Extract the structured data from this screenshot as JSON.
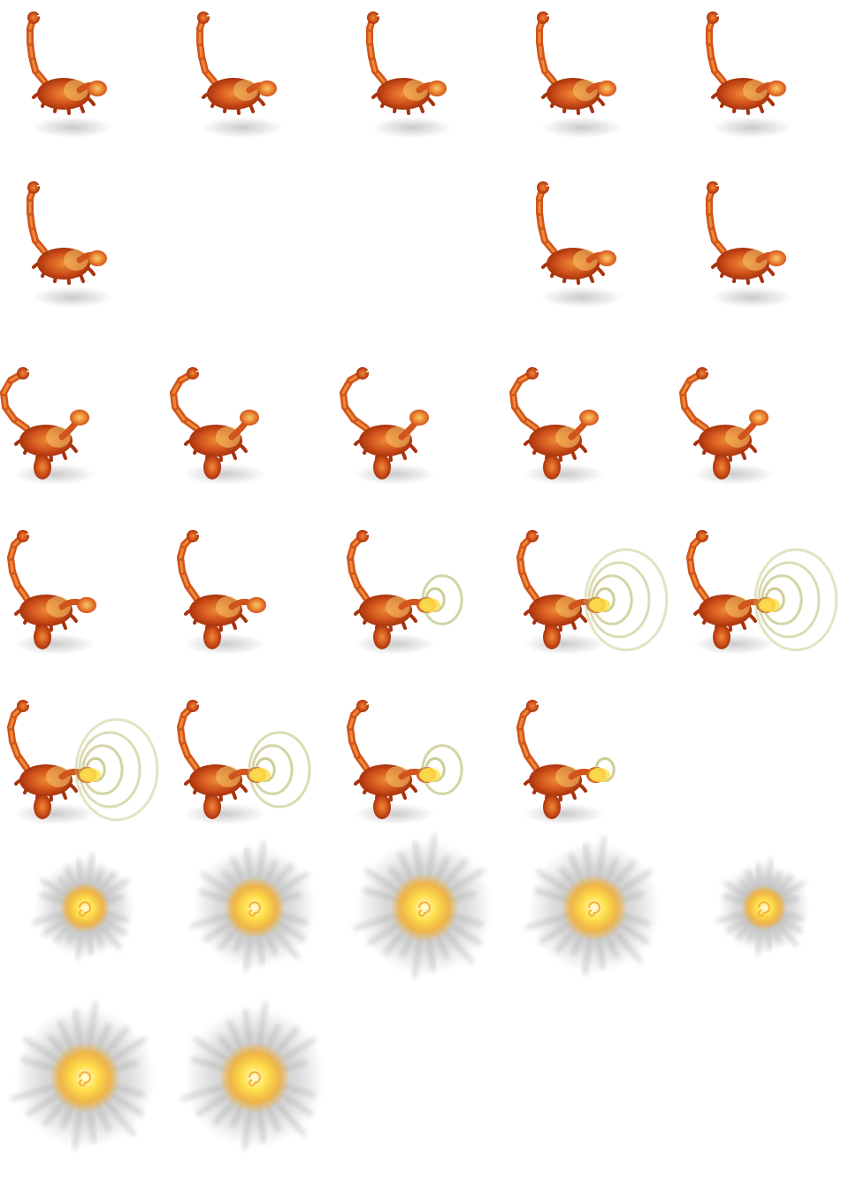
{
  "sheet": {
    "kind": "sprite-sheet",
    "subject": "scorpion",
    "columns": 5,
    "rows": 7,
    "background": "#ffffff",
    "colors": {
      "shell_dark": "#a8320c",
      "shell_mid": "#d1541c",
      "shell_light": "#ee8a36",
      "highlight": "#f7c86a",
      "shadow": "#bdbdbd",
      "ring": "#b8b86a",
      "blast_core": "#ffe04a",
      "blast_mid": "#f3b23a",
      "blast_smoke": "#9a9a9a"
    }
  },
  "frames": [
    {
      "icon": "scorpion-idle-sprite",
      "col": 0,
      "row": 0,
      "type": "scorpion",
      "pose": "idle",
      "rings": 0
    },
    {
      "icon": "scorpion-idle-sprite",
      "col": 1,
      "row": 0,
      "type": "scorpion",
      "pose": "idle",
      "rings": 0
    },
    {
      "icon": "scorpion-idle-sprite",
      "col": 2,
      "row": 0,
      "type": "scorpion",
      "pose": "idle",
      "rings": 0
    },
    {
      "icon": "scorpion-idle-sprite",
      "col": 3,
      "row": 0,
      "type": "scorpion",
      "pose": "idle",
      "rings": 0
    },
    {
      "icon": "scorpion-idle-sprite",
      "col": 4,
      "row": 0,
      "type": "scorpion",
      "pose": "idle",
      "rings": 0
    },
    {
      "icon": "scorpion-idle-sprite",
      "col": 0,
      "row": 1,
      "type": "scorpion",
      "pose": "idle",
      "rings": 0
    },
    {
      "icon": "scorpion-walk-sprite",
      "col": 3,
      "row": 1,
      "type": "scorpion",
      "pose": "walk",
      "rings": 0
    },
    {
      "icon": "scorpion-walk-sprite",
      "col": 4,
      "row": 1,
      "type": "scorpion",
      "pose": "walk",
      "rings": 0
    },
    {
      "icon": "scorpion-raise-sprite",
      "col": 0,
      "row": 2,
      "type": "scorpion",
      "pose": "raise",
      "rings": 0
    },
    {
      "icon": "scorpion-raise-sprite",
      "col": 1,
      "row": 2,
      "type": "scorpion",
      "pose": "raise",
      "rings": 0
    },
    {
      "icon": "scorpion-raise-sprite",
      "col": 2,
      "row": 2,
      "type": "scorpion",
      "pose": "raise",
      "rings": 0
    },
    {
      "icon": "scorpion-raise-sprite",
      "col": 3,
      "row": 2,
      "type": "scorpion",
      "pose": "raise",
      "rings": 0
    },
    {
      "icon": "scorpion-raise-sprite",
      "col": 4,
      "row": 2,
      "type": "scorpion",
      "pose": "raise",
      "rings": 0
    },
    {
      "icon": "scorpion-attack-sprite",
      "col": 0,
      "row": 3,
      "type": "scorpion",
      "pose": "attack",
      "rings": 0
    },
    {
      "icon": "scorpion-attack-sprite",
      "col": 1,
      "row": 3,
      "type": "scorpion",
      "pose": "attack",
      "rings": 0
    },
    {
      "icon": "scorpion-attack-sprite",
      "col": 2,
      "row": 3,
      "type": "scorpion",
      "pose": "attack",
      "rings": 2
    },
    {
      "icon": "scorpion-attack-sprite",
      "col": 3,
      "row": 3,
      "type": "scorpion",
      "pose": "attack",
      "rings": 4
    },
    {
      "icon": "scorpion-attack-sprite",
      "col": 4,
      "row": 3,
      "type": "scorpion",
      "pose": "attack",
      "rings": 4
    },
    {
      "icon": "scorpion-attack-sprite",
      "col": 0,
      "row": 4,
      "type": "scorpion",
      "pose": "attack",
      "rings": 4
    },
    {
      "icon": "scorpion-attack-sprite",
      "col": 1,
      "row": 4,
      "type": "scorpion",
      "pose": "attack",
      "rings": 3
    },
    {
      "icon": "scorpion-attack-sprite",
      "col": 2,
      "row": 4,
      "type": "scorpion",
      "pose": "attack",
      "rings": 2
    },
    {
      "icon": "scorpion-attack-sprite",
      "col": 3,
      "row": 4,
      "type": "scorpion",
      "pose": "attack",
      "rings": 1
    },
    {
      "icon": "explosion-sprite",
      "col": 0,
      "row": 5,
      "type": "blast",
      "intensity": 0.55
    },
    {
      "icon": "explosion-sprite",
      "col": 1,
      "row": 5,
      "type": "blast",
      "intensity": 0.8
    },
    {
      "icon": "explosion-sprite",
      "col": 2,
      "row": 5,
      "type": "blast",
      "intensity": 0.95
    },
    {
      "icon": "explosion-sprite",
      "col": 3,
      "row": 5,
      "type": "blast",
      "intensity": 0.9
    },
    {
      "icon": "explosion-sprite",
      "col": 4,
      "row": 5,
      "type": "blast",
      "intensity": 0.45
    },
    {
      "icon": "explosion-sprite",
      "col": 0,
      "row": 6,
      "type": "blast",
      "intensity": 1.0
    },
    {
      "icon": "explosion-sprite",
      "col": 1,
      "row": 6,
      "type": "blast",
      "intensity": 1.0
    }
  ]
}
